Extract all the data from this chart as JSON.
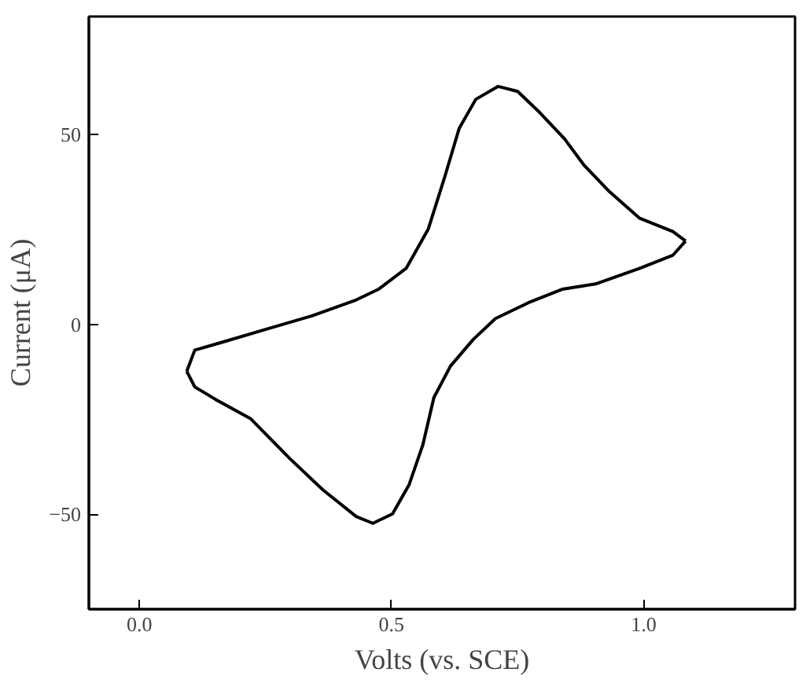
{
  "chart_data": {
    "type": "line",
    "xlabel": "Volts (vs. SCE)",
    "ylabel": "Current (μA)",
    "xlim": [
      -0.1,
      1.3
    ],
    "ylim": [
      -75,
      81
    ],
    "xticks": [
      {
        "value": 0,
        "label": "0.0"
      },
      {
        "value": 0.5,
        "label": "0.5"
      },
      {
        "value": 1,
        "label": "1.0"
      }
    ],
    "yticks": [
      -50,
      0,
      50
    ],
    "grid": false,
    "marker": "none",
    "line_style": "solid",
    "series": [
      {
        "color": "#000000",
        "x": [
          0.094,
          0.11,
          0.165,
          0.254,
          0.342,
          0.43,
          0.474,
          0.529,
          0.573,
          0.606,
          0.634,
          0.667,
          0.711,
          0.75,
          0.794,
          0.843,
          0.882,
          0.932,
          0.992,
          1.058,
          1.083
        ],
        "values": [
          -12.4,
          -6.8,
          -4.7,
          -1.2,
          2.2,
          6.4,
          9.2,
          14.7,
          25.1,
          39.0,
          51.5,
          59.2,
          62.6,
          61.3,
          55.7,
          48.8,
          41.8,
          34.9,
          27.9,
          24.4,
          21.9
        ]
      },
      {
        "color": "#000000",
        "x": [
          0.094,
          0.11,
          0.154,
          0.221,
          0.298,
          0.364,
          0.43,
          0.463,
          0.502,
          0.535,
          0.562,
          0.584,
          0.617,
          0.662,
          0.706,
          0.772,
          0.838,
          0.904,
          0.992,
          1.058,
          1.083
        ],
        "values": [
          -12.4,
          -16.5,
          -20.0,
          -24.9,
          -35.3,
          -43.6,
          -50.6,
          -52.4,
          -49.9,
          -42.2,
          -31.8,
          -19.3,
          -11.0,
          -4.0,
          1.5,
          5.7,
          9.2,
          10.6,
          14.7,
          18.2,
          21.9
        ]
      }
    ]
  }
}
